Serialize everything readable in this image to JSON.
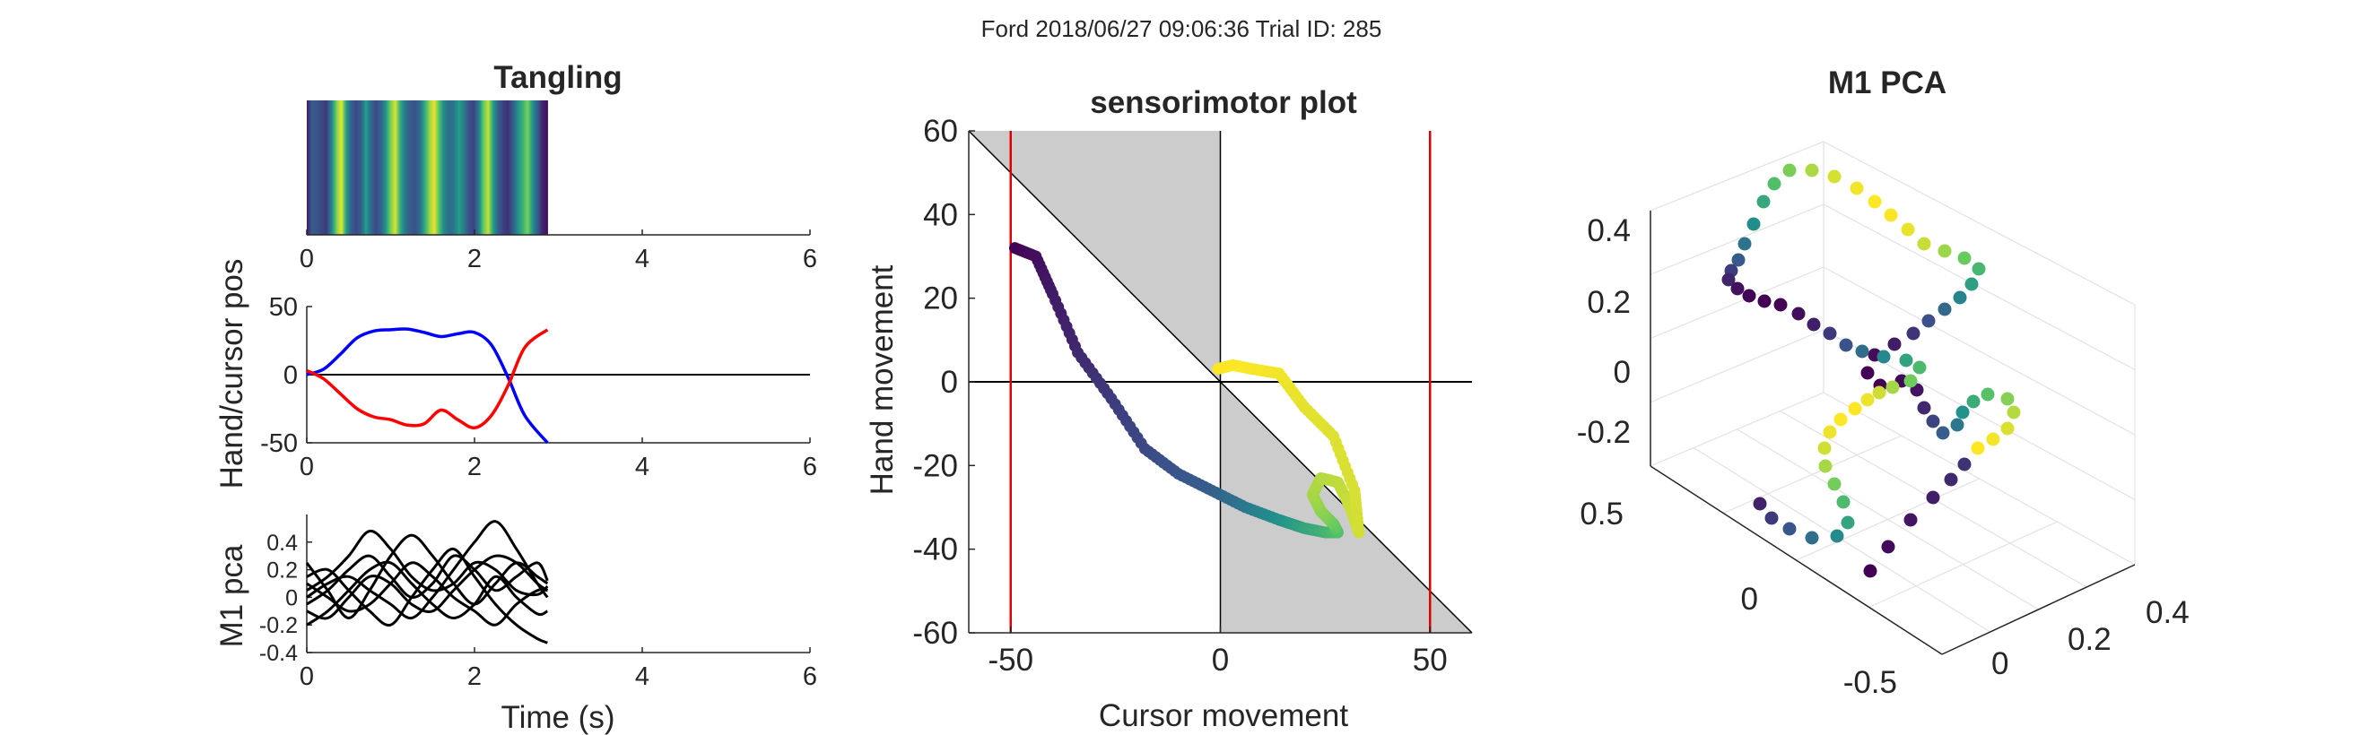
{
  "suptitle": "Ford 2018/06/27 09:06:36 Trial ID: 285",
  "colors": {
    "hand": "#0000ff",
    "cursor": "#ff0000",
    "zero_line": "#000000",
    "shade": "#cccccc",
    "bound": "#e00000",
    "pc_lines": "#000000",
    "colormap": [
      "#440154",
      "#3b528b",
      "#21918c",
      "#5ec962",
      "#fde725"
    ]
  },
  "chart_data": [
    {
      "id": "tangling",
      "type": "heatmap",
      "title": "Tangling",
      "xlabel": "",
      "ylabel": "",
      "xlim": [
        0,
        6
      ],
      "xticks": [
        "0",
        "2",
        "4",
        "6"
      ],
      "duration": 2.87,
      "values": [
        0.08,
        0.3,
        0.25,
        0.22,
        0.18,
        0.45,
        0.8,
        0.98,
        0.55,
        0.3,
        0.22,
        0.3,
        0.55,
        0.35,
        0.22,
        0.3,
        0.5,
        0.78,
        0.95,
        0.62,
        0.4,
        0.3,
        0.25,
        0.35,
        0.6,
        0.85,
        0.97,
        0.7,
        0.45,
        0.35,
        0.4,
        0.55,
        0.42,
        0.25,
        0.2,
        0.4,
        0.75,
        0.92,
        0.55,
        0.3,
        0.2,
        0.15,
        0.28,
        0.5,
        0.62,
        0.8,
        0.52,
        0.3,
        0.12,
        0.05
      ]
    },
    {
      "id": "hand_cursor",
      "type": "line",
      "title": "",
      "xlabel": "",
      "ylabel": "Hand/cursor pos",
      "xlim": [
        0,
        6
      ],
      "ylim": [
        -50,
        50
      ],
      "xticks": [
        "0",
        "2",
        "4",
        "6"
      ],
      "yticks": [
        "-50",
        "0",
        "50"
      ],
      "series": [
        {
          "role": "hand",
          "x": [
            0,
            0.2,
            0.4,
            0.6,
            0.8,
            1.0,
            1.2,
            1.4,
            1.6,
            1.8,
            2.0,
            2.2,
            2.4,
            2.6,
            2.87
          ],
          "y": [
            0,
            4,
            15,
            27,
            32,
            33,
            33.5,
            31,
            28,
            30,
            31,
            22,
            -2,
            -30,
            -50
          ]
        },
        {
          "role": "cursor",
          "x": [
            0,
            0.2,
            0.4,
            0.6,
            0.8,
            1.0,
            1.2,
            1.4,
            1.6,
            1.8,
            2.0,
            2.2,
            2.4,
            2.6,
            2.87
          ],
          "y": [
            3,
            -3,
            -14,
            -25,
            -31,
            -33,
            -37,
            -36,
            -26,
            -33,
            -39,
            -30,
            -8,
            20,
            33
          ]
        }
      ]
    },
    {
      "id": "m1_pca",
      "type": "line",
      "title": "",
      "xlabel": "Time (s)",
      "ylabel": "M1 pca",
      "xlim": [
        0,
        6
      ],
      "ylim": [
        -0.4,
        0.6
      ],
      "xticks": [
        "0",
        "2",
        "4",
        "6"
      ],
      "yticks": [
        "-0.4",
        "-0.2",
        "0",
        "0.2",
        "0.4"
      ],
      "x": [
        0,
        0.25,
        0.5,
        0.75,
        1.0,
        1.25,
        1.5,
        1.75,
        2.0,
        2.25,
        2.5,
        2.75,
        2.87
      ],
      "series": [
        {
          "y": [
            0.05,
            0.15,
            0.3,
            0.48,
            0.35,
            0.15,
            0.05,
            0.1,
            0.25,
            0.2,
            0.05,
            0.02,
            0.08
          ]
        },
        {
          "y": [
            0.25,
            0.05,
            -0.15,
            0.05,
            0.3,
            0.45,
            0.3,
            0.1,
            -0.05,
            0.1,
            0.25,
            0.15,
            0.1
          ]
        },
        {
          "y": [
            0.15,
            0.2,
            0.05,
            -0.1,
            -0.2,
            0.0,
            0.2,
            0.35,
            0.15,
            -0.05,
            -0.2,
            -0.3,
            -0.33
          ]
        },
        {
          "y": [
            -0.1,
            -0.15,
            0.0,
            0.15,
            0.1,
            -0.05,
            -0.1,
            0.05,
            0.2,
            0.3,
            0.25,
            0.1,
            0.05
          ]
        },
        {
          "y": [
            0.0,
            0.1,
            0.15,
            0.05,
            -0.05,
            -0.15,
            0.0,
            0.2,
            0.4,
            0.55,
            0.35,
            0.1,
            0.0
          ]
        },
        {
          "y": [
            -0.2,
            -0.1,
            0.05,
            0.2,
            0.25,
            0.1,
            -0.05,
            -0.15,
            -0.05,
            0.15,
            0.0,
            -0.12,
            -0.1
          ]
        },
        {
          "y": [
            0.1,
            0.0,
            -0.1,
            -0.05,
            0.1,
            0.25,
            0.15,
            0.0,
            -0.1,
            -0.2,
            -0.05,
            0.05,
            0.05
          ]
        },
        {
          "y": [
            -0.05,
            0.05,
            0.2,
            0.3,
            0.15,
            0.0,
            0.1,
            0.3,
            0.2,
            0.05,
            0.15,
            0.25,
            0.12
          ]
        }
      ]
    },
    {
      "id": "sensorimotor",
      "type": "scatter",
      "title": "sensorimotor plot",
      "xlabel": "Cursor movement",
      "ylabel": "Hand movement",
      "xlim": [
        -60,
        60
      ],
      "ylim": [
        -60,
        60
      ],
      "xticks": [
        "-50",
        "0",
        "50"
      ],
      "yticks": [
        "-60",
        "-40",
        "-20",
        "0",
        "20",
        "40",
        "60"
      ],
      "bounds": [
        -50,
        50
      ],
      "path_x": [
        -49,
        -44,
        -40,
        -34,
        -26,
        -18,
        -10,
        -2,
        6,
        14,
        20,
        25,
        28,
        27,
        24,
        22,
        24,
        28,
        31,
        33,
        32,
        27,
        20,
        14,
        8,
        3,
        -1
      ],
      "path_y": [
        32,
        30,
        21,
        7,
        -4,
        -16,
        -22,
        -26,
        -30,
        -33,
        -35,
        -36,
        -36,
        -34,
        -31,
        -27,
        -23,
        -24,
        -30,
        -36,
        -26,
        -13,
        -6,
        2,
        3,
        4,
        3
      ],
      "color_t": [
        0.0,
        0.04,
        0.08,
        0.12,
        0.18,
        0.22,
        0.26,
        0.3,
        0.4,
        0.5,
        0.58,
        0.64,
        0.7,
        0.76,
        0.82,
        0.86,
        0.88,
        0.9,
        0.92,
        0.93,
        0.94,
        0.95,
        0.96,
        0.98,
        0.99,
        1.0,
        1.0
      ]
    },
    {
      "id": "pca3d",
      "type": "scatter",
      "title": "M1 PCA",
      "xlabel": "",
      "ylabel": "",
      "zlabel": "",
      "ylim_ticks": [
        "-0.5",
        "0",
        "0.5"
      ],
      "xlim_ticks": [
        "0",
        "0.2",
        "0.4"
      ],
      "zlim_ticks": [
        "-0.2",
        "0",
        "0.2",
        "0.4"
      ]
    }
  ]
}
